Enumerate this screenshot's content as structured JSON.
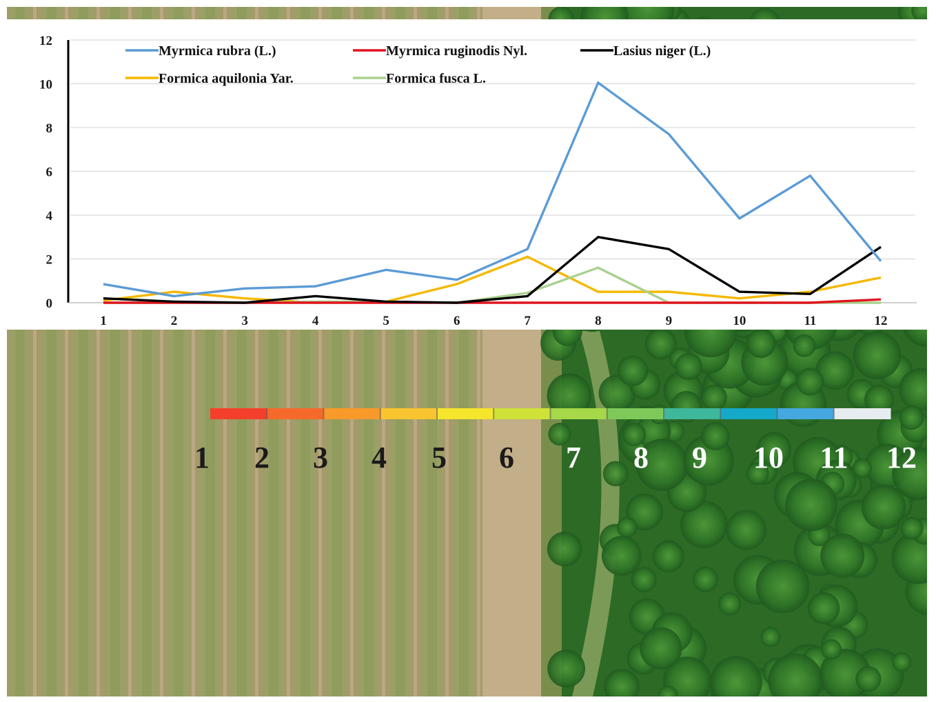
{
  "chart_data": {
    "type": "line",
    "x": [
      1,
      2,
      3,
      4,
      5,
      6,
      7,
      8,
      9,
      10,
      11,
      12
    ],
    "ylim": [
      0,
      12
    ],
    "yticks": [
      0,
      2,
      4,
      6,
      8,
      10,
      12
    ],
    "xlabel": "",
    "ylabel": "",
    "title": "",
    "grid": true,
    "legend_position": "top",
    "series": [
      {
        "name": "Myrmica rubra (L.)",
        "color": "#5b9bd5",
        "values": [
          0.85,
          0.3,
          0.65,
          0.75,
          1.5,
          1.05,
          2.45,
          10.05,
          7.7,
          3.85,
          5.8,
          1.9
        ]
      },
      {
        "name": "Myrmica ruginodis Nyl.",
        "color": "#e0141e",
        "values": [
          0,
          0,
          0,
          0,
          0,
          0,
          0,
          0,
          0,
          0,
          0,
          0.15
        ]
      },
      {
        "name": "Lasius niger (L.)",
        "color": "#000000",
        "values": [
          0.2,
          0.05,
          0,
          0.3,
          0.05,
          0,
          0.3,
          3.0,
          2.45,
          0.5,
          0.4,
          2.55
        ]
      },
      {
        "name": "Formica aquilonia Yar.",
        "color": "#f5b800",
        "values": [
          0.1,
          0.5,
          0.2,
          0,
          0.05,
          0.85,
          2.1,
          0.5,
          0.5,
          0.2,
          0.5,
          1.15
        ]
      },
      {
        "name": "Formica fusca L.",
        "color": "#a9d18e",
        "values": [
          0,
          0,
          0,
          0.05,
          0.05,
          0,
          0.45,
          1.6,
          0,
          0,
          0,
          0
        ]
      }
    ]
  },
  "color_scale": {
    "labels": [
      "1",
      "2",
      "3",
      "4",
      "5",
      "6",
      "7",
      "8",
      "9",
      "10",
      "11",
      "12"
    ],
    "label_colors": [
      "#1a1a1a",
      "#1a1a1a",
      "#1a1a1a",
      "#1a1a1a",
      "#1a1a1a",
      "#1a1a1a",
      "#ffffff",
      "#ffffff",
      "#ffffff",
      "#ffffff",
      "#ffffff",
      "#ffffff"
    ],
    "segment_colors": [
      "#f4402a",
      "#f56a2a",
      "#f79a2a",
      "#f8c530",
      "#f5e52c",
      "#cfe23a",
      "#a6d84a",
      "#7fc95a",
      "#3fb79a",
      "#14a9c8",
      "#45a8e0",
      "#e6ecef"
    ]
  }
}
